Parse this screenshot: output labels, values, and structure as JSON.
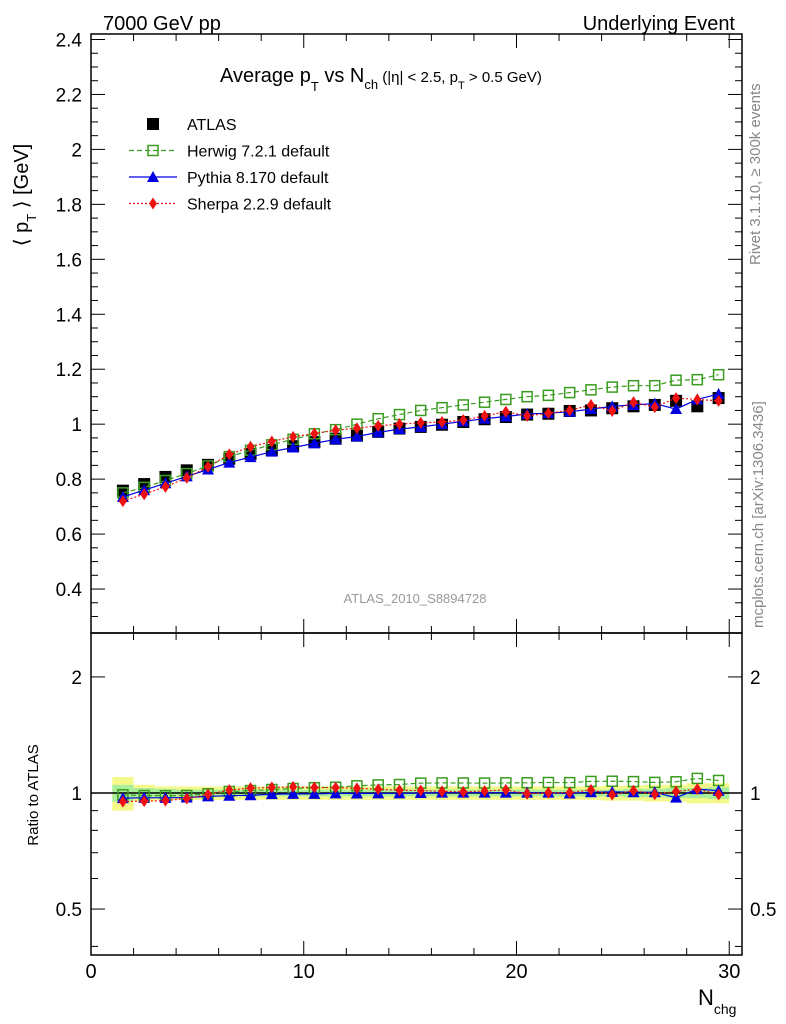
{
  "header": {
    "left": "7000 GeV pp",
    "right": "Underlying Event"
  },
  "title": {
    "main": "Average p",
    "main_sub": "T",
    "vs": " vs N",
    "vs_sub": "ch",
    "cuts_a": " (|η| < 2.5, p",
    "cuts_sub": "T",
    "cuts_b": " > 0.5 GeV)"
  },
  "side_labels": {
    "rivet": "Rivet 3.1.10, ≥ 300k events",
    "mcplots": "mcplots.cern.ch [arXiv:1306.3436]"
  },
  "watermark": "ATLAS_2010_S8894728",
  "axes": {
    "ylabel_pre": "⟨ p",
    "ylabel_sub": "T",
    "ylabel_post": " ⟩ [GeV]",
    "ratio_ylabel": "Ratio to ATLAS",
    "xlabel": "N",
    "xlabel_sub": "chg"
  },
  "chart_data": {
    "type": "scatter",
    "x": [
      1.5,
      2.5,
      3.5,
      4.5,
      5.5,
      6.5,
      7.5,
      8.5,
      9.5,
      10.5,
      11.5,
      12.5,
      13.5,
      14.5,
      15.5,
      16.5,
      17.5,
      18.5,
      19.5,
      20.5,
      21.5,
      22.5,
      23.5,
      24.5,
      25.5,
      26.5,
      27.5,
      28.5,
      29.5
    ],
    "xlim": [
      0,
      30.6
    ],
    "xticks": [
      0,
      10,
      20,
      30
    ],
    "main": {
      "ylim": [
        0.24,
        2.42
      ],
      "yticks": [
        0.4,
        0.6,
        0.8,
        1,
        1.2,
        1.4,
        1.6,
        1.8,
        2,
        2.2,
        2.4
      ],
      "ytick_labels": [
        "0.4",
        "0.6",
        "0.8",
        "1",
        "1.2",
        "1.4",
        "1.6",
        "1.8",
        "2",
        "2.2",
        "2.4"
      ]
    },
    "ratio": {
      "ylim": [
        0.38,
        2.6
      ],
      "log": true,
      "yticks": [
        0.5,
        1,
        2
      ],
      "ytick_labels": [
        "0.5",
        "1",
        "2"
      ],
      "band_inner": [
        0.05,
        0.03,
        0.025,
        0.02,
        0.02,
        0.02,
        0.02,
        0.02,
        0.02,
        0.02,
        0.02,
        0.02,
        0.02,
        0.02,
        0.02,
        0.02,
        0.02,
        0.02,
        0.02,
        0.02,
        0.02,
        0.02,
        0.02,
        0.02,
        0.025,
        0.025,
        0.03,
        0.03,
        0.035
      ],
      "band_outer": [
        0.1,
        0.05,
        0.04,
        0.04,
        0.04,
        0.04,
        0.04,
        0.04,
        0.04,
        0.04,
        0.04,
        0.04,
        0.04,
        0.04,
        0.04,
        0.04,
        0.04,
        0.04,
        0.04,
        0.04,
        0.04,
        0.04,
        0.04,
        0.045,
        0.045,
        0.05,
        0.05,
        0.06,
        0.06
      ]
    },
    "series": [
      {
        "name": "ATLAS",
        "style": "data",
        "color": "#000000",
        "marker": "square",
        "values": [
          0.758,
          0.782,
          0.808,
          0.832,
          0.852,
          0.874,
          0.892,
          0.906,
          0.92,
          0.935,
          0.947,
          0.958,
          0.972,
          0.984,
          0.99,
          0.998,
          1.008,
          1.018,
          1.026,
          1.035,
          1.038,
          1.048,
          1.05,
          1.058,
          1.065,
          1.07,
          1.085,
          1.065,
          1.095
        ]
      },
      {
        "name": "Herwig 7.2.1 default",
        "style": "dashed",
        "color": "#3a9c1f",
        "marker": "open-square",
        "values": [
          0.75,
          0.77,
          0.795,
          0.82,
          0.848,
          0.882,
          0.905,
          0.925,
          0.945,
          0.965,
          0.98,
          1.0,
          1.02,
          1.035,
          1.05,
          1.06,
          1.07,
          1.08,
          1.09,
          1.1,
          1.105,
          1.115,
          1.125,
          1.135,
          1.14,
          1.14,
          1.16,
          1.162,
          1.18
        ]
      },
      {
        "name": "Pythia 8.170 default",
        "style": "solid",
        "color": "#0000e0",
        "marker": "triangle",
        "values": [
          0.735,
          0.76,
          0.785,
          0.81,
          0.835,
          0.86,
          0.88,
          0.9,
          0.915,
          0.93,
          0.945,
          0.955,
          0.97,
          0.982,
          0.99,
          1.0,
          1.01,
          1.02,
          1.028,
          1.037,
          1.04,
          1.045,
          1.055,
          1.065,
          1.07,
          1.075,
          1.055,
          1.09,
          1.11
        ]
      },
      {
        "name": "Sherpa 2.2.9 default",
        "style": "dotted",
        "color": "#ee1111",
        "marker": "diamond",
        "values": [
          0.72,
          0.745,
          0.772,
          0.805,
          0.845,
          0.89,
          0.918,
          0.937,
          0.954,
          0.966,
          0.978,
          0.985,
          0.994,
          1.0,
          1.005,
          1.008,
          1.015,
          1.03,
          1.045,
          1.03,
          1.04,
          1.05,
          1.07,
          1.048,
          1.08,
          1.062,
          1.095,
          1.09,
          1.085
        ]
      }
    ]
  }
}
